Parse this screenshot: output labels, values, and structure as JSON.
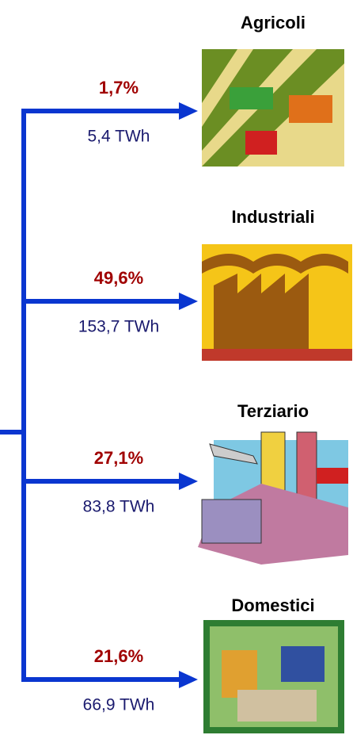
{
  "nodes": [
    {
      "label": "Agricoli",
      "share": "1,7%",
      "energy": "5,4 TWh"
    },
    {
      "label": "Industriali",
      "share": "49,6%",
      "energy": "153,7 TWh"
    },
    {
      "label": "Terziario",
      "share": "27,1%",
      "energy": "83,8 TWh"
    },
    {
      "label": "Domestici",
      "share": "21,6%",
      "energy": "66,9 TWh"
    }
  ]
}
